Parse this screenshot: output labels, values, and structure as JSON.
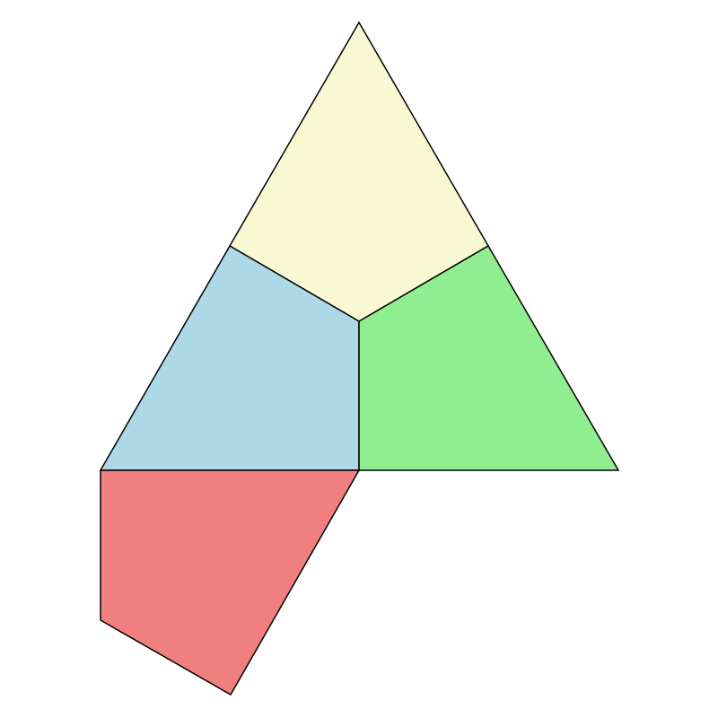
{
  "diagram": {
    "type": "polygon-dissection",
    "faces": [
      {
        "id": "yellow",
        "color": "#f8f9d2"
      },
      {
        "id": "blue",
        "color": "#add8e6"
      },
      {
        "id": "green",
        "color": "#90ee90"
      },
      {
        "id": "red",
        "color": "#f08080"
      }
    ]
  }
}
